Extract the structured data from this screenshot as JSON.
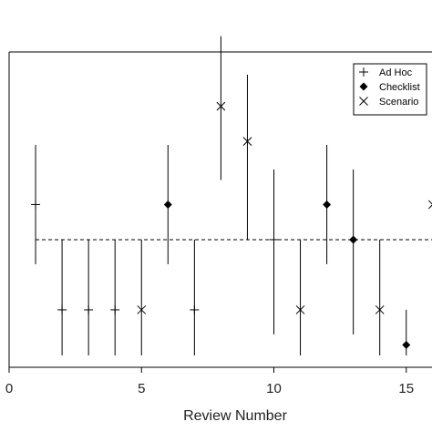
{
  "chart_data": {
    "type": "scatter",
    "title": "",
    "xlabel": "Review Number",
    "ylabel": "",
    "xlim": [
      0,
      16
    ],
    "ylim": [
      0,
      10
    ],
    "x_ticks": [
      0,
      5,
      10,
      15
    ],
    "x_tick_labels": [
      "0",
      "5",
      "10",
      "15"
    ],
    "reference_line_y": 3.3,
    "legend_position": "top-right",
    "series": [
      {
        "name": "Ad Hoc",
        "marker": "plus",
        "points": [
          {
            "x": 1,
            "y": 4.3,
            "low": 2.6,
            "high": 6.0
          },
          {
            "x": 2,
            "y": 1.3,
            "low": 0.0,
            "high": 3.3
          },
          {
            "x": 3,
            "y": 1.3,
            "low": 0.0,
            "high": 3.3
          },
          {
            "x": 4,
            "y": 1.3,
            "low": 0.0,
            "high": 3.3
          },
          {
            "x": 7,
            "y": 1.3,
            "low": 0.0,
            "high": 3.3
          },
          {
            "x": 10,
            "y": 3.3,
            "low": 0.6,
            "high": 5.3
          }
        ]
      },
      {
        "name": "Checklist",
        "marker": "diamond",
        "points": [
          {
            "x": 6,
            "y": 4.3,
            "low": 2.6,
            "high": 6.0
          },
          {
            "x": 12,
            "y": 4.3,
            "low": 2.6,
            "high": 6.0
          },
          {
            "x": 13,
            "y": 3.3,
            "low": 0.6,
            "high": 5.3
          },
          {
            "x": 15,
            "y": 0.3,
            "low": 0.0,
            "high": 1.3
          }
        ]
      },
      {
        "name": "Scenario",
        "marker": "cross",
        "points": [
          {
            "x": 5,
            "y": 1.3,
            "low": 0.0,
            "high": 3.3
          },
          {
            "x": 8,
            "y": 7.1,
            "low": 5.0,
            "high": 9.1
          },
          {
            "x": 9,
            "y": 6.1,
            "low": 3.3,
            "high": 8.0
          },
          {
            "x": 11,
            "y": 1.3,
            "low": 0.0,
            "high": 3.3
          },
          {
            "x": 14,
            "y": 1.3,
            "low": 0.0,
            "high": 3.3
          },
          {
            "x": 16,
            "y": 4.3,
            "low": 2.6,
            "high": 6.0
          }
        ]
      }
    ]
  },
  "colors": {
    "marks": "#000000",
    "axis": "#000000",
    "text": "#222222",
    "background": "#ffffff"
  }
}
